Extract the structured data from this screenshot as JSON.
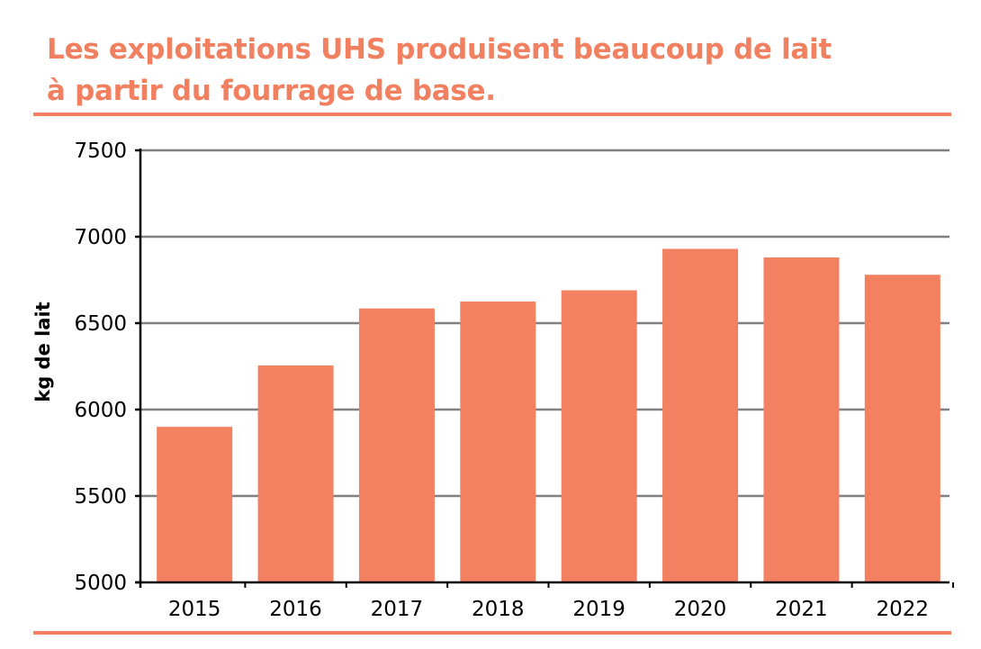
{
  "title_lines": [
    "Les exploitations UHS produisent beaucoup de lait",
    "à partir du fourrage de base."
  ],
  "colors": {
    "accent": "#f0805f",
    "bar": "#f28061",
    "grid": "#808080",
    "axis": "#000000"
  },
  "chart_data": {
    "type": "bar",
    "title": "Les exploitations UHS produisent beaucoup de lait à partir du fourrage de base.",
    "xlabel": "",
    "ylabel": "kg de lait",
    "categories": [
      "2015",
      "2016",
      "2017",
      "2018",
      "2019",
      "2020",
      "2021",
      "2022"
    ],
    "values": [
      5900,
      6255,
      6585,
      6625,
      6690,
      6930,
      6880,
      6780
    ],
    "ylim": [
      5000,
      7500
    ],
    "yticks": [
      5000,
      5500,
      6000,
      6500,
      7000,
      7500
    ],
    "grid": true,
    "legend": "none"
  }
}
